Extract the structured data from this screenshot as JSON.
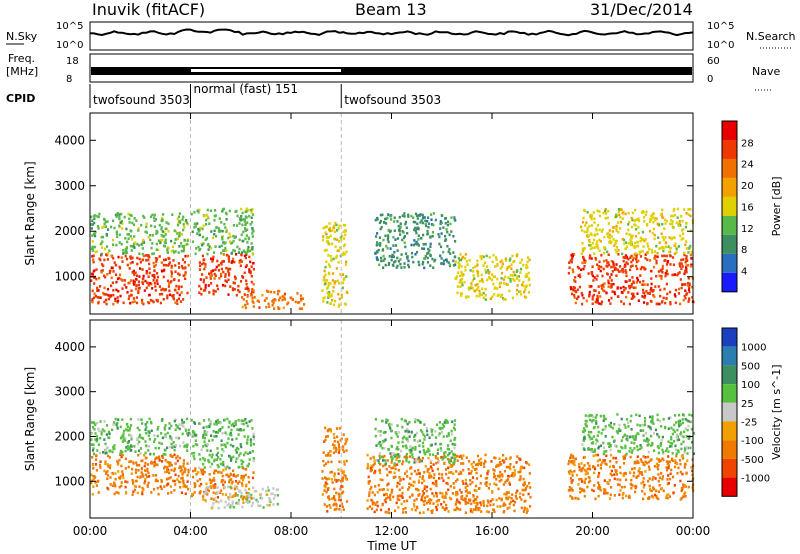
{
  "header": {
    "station": "Inuvik (fitACF)",
    "beam": "Beam 13",
    "date": "31/Dec/2014"
  },
  "top_panels": {
    "nsky_label": "N.Sky",
    "nsky_ticks": [
      "10^5",
      "10^0"
    ],
    "nsearch_label": "N.Search",
    "nsearch_ticks": [
      "10^5",
      "10^0"
    ],
    "freq_label_1": "Freq.",
    "freq_label_2": "[MHz]",
    "freq_ticks": [
      "18",
      "8"
    ],
    "nave_label": "Nave",
    "nave_ticks": [
      "60",
      "0"
    ],
    "cpid_label": "CPID",
    "modes": [
      {
        "name": "twofsound 3503",
        "start": 0,
        "end": 4
      },
      {
        "name": "normal (fast) 151",
        "start": 4,
        "end": 10
      },
      {
        "name": "twofsound 3503",
        "start": 10,
        "end": 24
      }
    ]
  },
  "colors": {
    "power_scale": [
      "#1a1aff",
      "#2a6fbf",
      "#3d8f62",
      "#58b84a",
      "#e0d000",
      "#f2a200",
      "#f07000",
      "#ee3800",
      "#e80000"
    ],
    "velocity_scale": [
      "#1a3fbf",
      "#2a7fb0",
      "#3d8f62",
      "#58c040",
      "#c8c8c8",
      "#f0a000",
      "#f07a00",
      "#ee4400",
      "#e80000"
    ],
    "separator": "#bbbbbb"
  },
  "chart_data": [
    {
      "type": "heatmap",
      "name": "power",
      "xlabel": "",
      "ylabel": "Slant Range [km]",
      "x_ticks": [
        "00:00",
        "04:00",
        "08:00",
        "12:00",
        "16:00",
        "20:00",
        "00:00"
      ],
      "y_ticks": [
        1000,
        2000,
        3000,
        4000
      ],
      "xlim": [
        0,
        24
      ],
      "ylim": [
        180,
        4600
      ],
      "colorbar": {
        "label": "Power [dB]",
        "ticks": [
          4,
          8,
          12,
          16,
          20,
          24,
          28
        ],
        "range": [
          0,
          30
        ]
      },
      "regions": [
        {
          "t0": 0.0,
          "t1": 3.9,
          "r0": 400,
          "r1": 1500,
          "value": 27
        },
        {
          "t0": 0.0,
          "t1": 3.9,
          "r0": 1500,
          "r1": 2400,
          "value": 12
        },
        {
          "t0": 4.3,
          "t1": 6.5,
          "r0": 600,
          "r1": 1500,
          "value": 26
        },
        {
          "t0": 4.0,
          "t1": 6.5,
          "r0": 1500,
          "r1": 2500,
          "value": 10
        },
        {
          "t0": 6.0,
          "t1": 8.5,
          "r0": 300,
          "r1": 700,
          "value": 24
        },
        {
          "t0": 9.2,
          "t1": 10.2,
          "r0": 300,
          "r1": 2200,
          "value": 14
        },
        {
          "t0": 11.3,
          "t1": 14.5,
          "r0": 1200,
          "r1": 2400,
          "value": 8
        },
        {
          "t0": 14.5,
          "t1": 17.5,
          "r0": 500,
          "r1": 1500,
          "value": 14
        },
        {
          "t0": 19.0,
          "t1": 24.0,
          "r0": 400,
          "r1": 1500,
          "value": 28
        },
        {
          "t0": 19.5,
          "t1": 24.0,
          "r0": 1500,
          "r1": 2500,
          "value": 15
        }
      ]
    },
    {
      "type": "heatmap",
      "name": "velocity",
      "xlabel": "Time UT",
      "ylabel": "Slant Range [km]",
      "x_ticks": [
        "00:00",
        "04:00",
        "08:00",
        "12:00",
        "16:00",
        "20:00",
        "00:00"
      ],
      "y_ticks": [
        1000,
        2000,
        3000,
        4000
      ],
      "xlim": [
        0,
        24
      ],
      "ylim": [
        180,
        4600
      ],
      "colorbar": {
        "label": "Velocity [m s^-1]",
        "ticks": [
          "1000",
          "500",
          "100",
          "25",
          "-25",
          "-100",
          "-500",
          "-1000"
        ]
      },
      "regions": [
        {
          "t0": 0.0,
          "t1": 3.9,
          "r0": 700,
          "r1": 1600,
          "value": "-100"
        },
        {
          "t0": 0.0,
          "t1": 3.9,
          "r0": 1600,
          "r1": 2400,
          "value": "100"
        },
        {
          "t0": 4.0,
          "t1": 6.5,
          "r0": 1300,
          "r1": 2400,
          "value": "100"
        },
        {
          "t0": 4.0,
          "t1": 6.5,
          "r0": 600,
          "r1": 1300,
          "value": "-100"
        },
        {
          "t0": 4.5,
          "t1": 7.5,
          "r0": 400,
          "r1": 900,
          "value": "0"
        },
        {
          "t0": 9.2,
          "t1": 10.2,
          "r0": 300,
          "r1": 2200,
          "value": "-100"
        },
        {
          "t0": 11.0,
          "t1": 17.5,
          "r0": 300,
          "r1": 1600,
          "value": "-100"
        },
        {
          "t0": 11.3,
          "t1": 14.5,
          "r0": 1400,
          "r1": 2400,
          "value": "100"
        },
        {
          "t0": 19.0,
          "t1": 24.0,
          "r0": 600,
          "r1": 1600,
          "value": "-100"
        },
        {
          "t0": 19.5,
          "t1": 24.0,
          "r0": 1600,
          "r1": 2500,
          "value": "100"
        }
      ]
    }
  ]
}
